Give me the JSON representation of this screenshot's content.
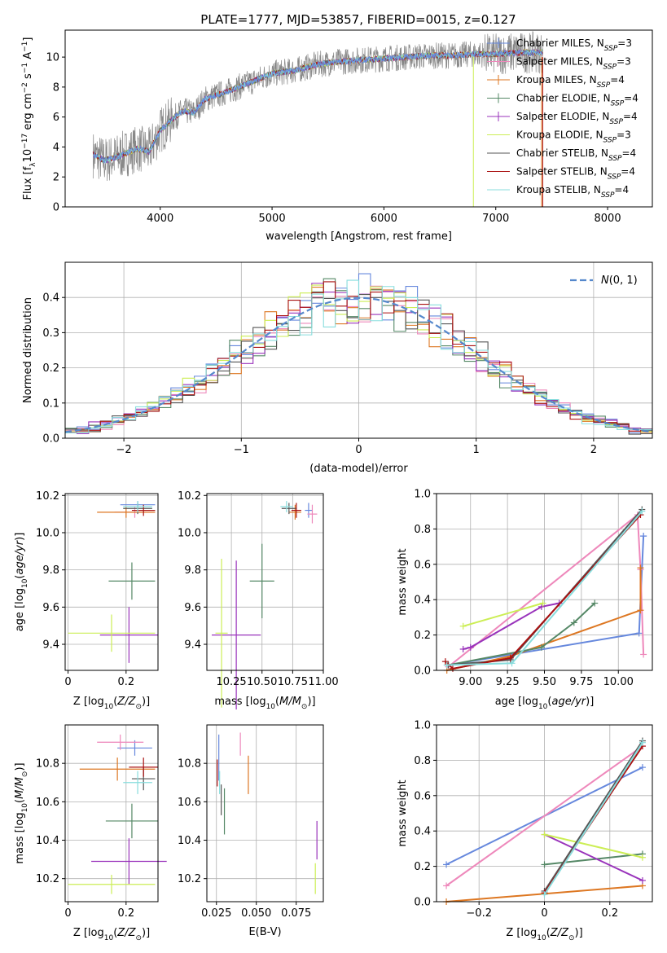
{
  "figure": {
    "title": "PLATE=1777, MJD=53857, FIBERID=0015, z=0.127"
  },
  "colors": {
    "Chabrier MILES": "#6688dd",
    "Salpeter MILES": "#ee88bb",
    "Kroupa MILES": "#dd7722",
    "Chabrier ELODIE": "#558866",
    "Salpeter ELODIE": "#9933bb",
    "Kroupa ELODIE": "#ccee55",
    "Chabrier STELIB": "#555555",
    "Salpeter STELIB": "#aa1111",
    "Kroupa STELIB": "#88dddd",
    "normal": "#5588cc"
  },
  "chart_data": [
    {
      "id": "spectrum",
      "type": "line",
      "xlabel": "wavelength [Angstrom, rest frame]",
      "ylabel": "Flux [f_λ 10^-17 erg cm^-2 s^-1 A^-1]",
      "xlim": [
        3150,
        8400
      ],
      "ylim": [
        0,
        11.8
      ],
      "xticks": [
        4000,
        5000,
        6000,
        7000,
        8000
      ],
      "yticks": [
        0,
        2,
        4,
        6,
        8,
        10
      ],
      "grid": false,
      "legend_position": "top-right",
      "legend": [
        "Chabrier MILES, N_SSP=3",
        "Salpeter MILES, N_SSP=3",
        "Kroupa MILES, N_SSP=4",
        "Chabrier ELODIE, N_SSP=4",
        "Salpeter ELODIE, N_SSP=4",
        "Kroupa ELODIE, N_SSP=3",
        "Chabrier STELIB, N_SSP=4",
        "Salpeter STELIB, N_SSP=4",
        "Kroupa STELIB, N_SSP=4"
      ],
      "model_x": [
        3400,
        3500,
        3600,
        3700,
        3800,
        3900,
        4000,
        4100,
        4200,
        4300,
        4400,
        4600,
        4800,
        5000,
        5200,
        5400,
        5600,
        5800,
        6000,
        6200,
        6400,
        6600,
        6800,
        7000,
        7200,
        7400
      ],
      "model_y": [
        3.5,
        3.1,
        3.3,
        3.6,
        3.9,
        3.7,
        5.1,
        5.8,
        6.4,
        6.3,
        7.2,
        7.7,
        8.3,
        8.9,
        9.1,
        9.5,
        9.7,
        9.8,
        9.9,
        10.0,
        10.1,
        10.1,
        10.2,
        10.2,
        10.3,
        10.3
      ]
    },
    {
      "id": "residuals",
      "type": "histogram",
      "xlabel": "(data-model)/error",
      "ylabel": "Normed distribution",
      "xlim": [
        -2.5,
        2.5
      ],
      "ylim": [
        0,
        0.5
      ],
      "xticks": [
        -2,
        -1,
        0,
        1,
        2
      ],
      "yticks": [
        0.0,
        0.1,
        0.2,
        0.3,
        0.4
      ],
      "grid": true,
      "legend_position": "top-right",
      "legend": [
        "N(0,1)"
      ],
      "bin_width": 0.1,
      "bin_start": -2.5
    },
    {
      "id": "z-age",
      "type": "errorbar",
      "xlabel": "Z [log10(Z/Z_sun)]",
      "ylabel": "age  [log10(age/yr)]",
      "xlim": [
        -0.01,
        0.31
      ],
      "ylim": [
        9.26,
        10.21
      ],
      "xticks": [
        0.0,
        0.2
      ],
      "yticks": [
        9.4,
        9.6,
        9.8,
        10.0,
        10.2
      ],
      "grid": true,
      "points": [
        {
          "model": "Chabrier MILES",
          "x": 0.24,
          "xerr": 0.06,
          "y": 10.15,
          "yerr": 0.02
        },
        {
          "model": "Salpeter MILES",
          "x": 0.23,
          "xerr": 0.07,
          "y": 10.11,
          "yerr": 0.03
        },
        {
          "model": "Kroupa MILES",
          "x": 0.2,
          "xerr": 0.1,
          "y": 10.11,
          "yerr": 0.03
        },
        {
          "model": "Chabrier ELODIE",
          "x": 0.22,
          "xerr": 0.08,
          "y": 9.74,
          "yerr": 0.1
        },
        {
          "model": "Salpeter ELODIE",
          "x": 0.21,
          "xerr": 0.1,
          "y": 9.45,
          "yerr": 0.15
        },
        {
          "model": "Kroupa ELODIE",
          "x": 0.15,
          "xerr": 0.15,
          "y": 9.46,
          "yerr": 0.1
        },
        {
          "model": "Chabrier STELIB",
          "x": 0.24,
          "xerr": 0.05,
          "y": 10.13,
          "yerr": 0.03
        },
        {
          "model": "Salpeter STELIB",
          "x": 0.26,
          "xerr": 0.04,
          "y": 10.12,
          "yerr": 0.03
        },
        {
          "model": "Kroupa STELIB",
          "x": 0.24,
          "xerr": 0.05,
          "y": 10.14,
          "yerr": 0.03
        }
      ]
    },
    {
      "id": "mass-age",
      "type": "errorbar",
      "xlabel": "mass [log10(M/M_sun)]",
      "xlim": [
        10.05,
        11.0
      ],
      "ylim": [
        9.26,
        10.21
      ],
      "xticks": [
        10.25,
        10.5,
        10.75,
        11.0
      ],
      "xticklabels": [
        "10.25",
        "10.50",
        "10.75",
        "11.00"
      ],
      "yticks": [
        9.4,
        9.6,
        9.8,
        10.0,
        10.2
      ],
      "grid": true,
      "points": [
        {
          "model": "Chabrier MILES",
          "x": 10.88,
          "xerr": 0.03,
          "y": 10.12,
          "yerr": 0.04
        },
        {
          "model": "Salpeter MILES",
          "x": 10.91,
          "xerr": 0.04,
          "y": 10.1,
          "yerr": 0.05
        },
        {
          "model": "Kroupa MILES",
          "x": 10.77,
          "xerr": 0.05,
          "y": 10.11,
          "yerr": 0.04
        },
        {
          "model": "Chabrier ELODIE",
          "x": 10.5,
          "xerr": 0.1,
          "y": 9.74,
          "yerr": 0.2
        },
        {
          "model": "Salpeter ELODIE",
          "x": 10.29,
          "xerr": 0.2,
          "y": 9.45,
          "yerr": 0.4
        },
        {
          "model": "Kroupa ELODIE",
          "x": 10.17,
          "xerr": 0.05,
          "y": 9.46,
          "yerr": 0.4
        },
        {
          "model": "Chabrier STELIB",
          "x": 10.72,
          "xerr": 0.06,
          "y": 10.13,
          "yerr": 0.03
        },
        {
          "model": "Salpeter STELIB",
          "x": 10.78,
          "xerr": 0.04,
          "y": 10.12,
          "yerr": 0.04
        },
        {
          "model": "Kroupa STELIB",
          "x": 10.7,
          "xerr": 0.05,
          "y": 10.14,
          "yerr": 0.03
        }
      ]
    },
    {
      "id": "age-weight",
      "type": "line",
      "xlabel": "age  [log10(age/yr)]",
      "ylabel": "mass weight",
      "xlim": [
        8.77,
        10.23
      ],
      "ylim": [
        0,
        1.0
      ],
      "xticks": [
        9.0,
        9.25,
        9.5,
        9.75,
        10.0
      ],
      "xticklabels": [
        "9.00",
        "9.25",
        "9.50",
        "9.75",
        "10.00"
      ],
      "yticks": [
        0.0,
        0.2,
        0.4,
        0.6,
        0.8,
        1.0
      ],
      "grid": true,
      "series": [
        {
          "model": "Chabrier MILES",
          "x": [
            8.85,
            10.14,
            10.17,
            10.17
          ],
          "y": [
            0.03,
            0.21,
            0.76,
            0.76
          ]
        },
        {
          "model": "Salpeter MILES",
          "x": [
            8.85,
            10.13,
            10.15,
            10.17
          ],
          "y": [
            0.02,
            0.88,
            0.57,
            0.09
          ]
        },
        {
          "model": "Kroupa MILES",
          "x": [
            8.84,
            9.27,
            10.15,
            10.15
          ],
          "y": [
            0.0,
            0.08,
            0.34,
            0.58
          ]
        },
        {
          "model": "Chabrier ELODIE",
          "x": [
            8.85,
            9.48,
            9.7,
            9.84
          ],
          "y": [
            0.03,
            0.13,
            0.27,
            0.38
          ]
        },
        {
          "model": "Salpeter ELODIE",
          "x": [
            8.95,
            9.0,
            9.48,
            9.6
          ],
          "y": [
            0.12,
            0.13,
            0.36,
            0.38
          ]
        },
        {
          "model": "Kroupa ELODIE",
          "x": [
            8.95,
            9.49
          ],
          "y": [
            0.25,
            0.38
          ]
        },
        {
          "model": "Chabrier STELIB",
          "x": [
            8.85,
            9.27,
            10.16
          ],
          "y": [
            0.03,
            0.06,
            0.91
          ]
        },
        {
          "model": "Salpeter STELIB",
          "x": [
            8.83,
            8.88,
            9.27,
            10.15
          ],
          "y": [
            0.05,
            0.01,
            0.07,
            0.88
          ]
        },
        {
          "model": "Kroupa STELIB",
          "x": [
            8.84,
            9.28,
            10.16
          ],
          "y": [
            0.03,
            0.04,
            0.9
          ]
        }
      ]
    },
    {
      "id": "z-mass",
      "type": "errorbar",
      "xlabel": "Z [log10(Z/Z_sun)]",
      "ylabel": "mass [log10(M/M_sun)]",
      "xlim": [
        -0.01,
        0.31
      ],
      "ylim": [
        10.08,
        11.0
      ],
      "xticks": [
        0.0,
        0.2
      ],
      "yticks": [
        10.2,
        10.4,
        10.6,
        10.8
      ],
      "grid": true,
      "points": [
        {
          "model": "Chabrier MILES",
          "x": 0.23,
          "xerr": 0.06,
          "y": 10.88,
          "yerr": 0.04
        },
        {
          "model": "Salpeter MILES",
          "x": 0.18,
          "xerr": 0.08,
          "y": 10.91,
          "yerr": 0.04
        },
        {
          "model": "Kroupa MILES",
          "x": 0.17,
          "xerr": 0.13,
          "y": 10.77,
          "yerr": 0.06
        },
        {
          "model": "Chabrier ELODIE",
          "x": 0.22,
          "xerr": 0.09,
          "y": 10.5,
          "yerr": 0.09
        },
        {
          "model": "Salpeter ELODIE",
          "x": 0.21,
          "xerr": 0.13,
          "y": 10.29,
          "yerr": 0.12
        },
        {
          "model": "Kroupa ELODIE",
          "x": 0.15,
          "xerr": 0.15,
          "y": 10.17,
          "yerr": 0.05
        },
        {
          "model": "Chabrier STELIB",
          "x": 0.26,
          "xerr": 0.04,
          "y": 10.72,
          "yerr": 0.06
        },
        {
          "model": "Salpeter STELIB",
          "x": 0.26,
          "xerr": 0.05,
          "y": 10.78,
          "yerr": 0.05
        },
        {
          "model": "Kroupa STELIB",
          "x": 0.24,
          "xerr": 0.05,
          "y": 10.7,
          "yerr": 0.06
        }
      ]
    },
    {
      "id": "ebv-mass",
      "type": "errorbar",
      "xlabel": "E(B-V)",
      "xlim": [
        0.019,
        0.092
      ],
      "ylim": [
        10.08,
        11.0
      ],
      "xticks": [
        0.025,
        0.05,
        0.075
      ],
      "xticklabels": [
        "0.025",
        "0.050",
        "0.075"
      ],
      "yticks": [
        10.2,
        10.4,
        10.6,
        10.8
      ],
      "grid": true,
      "points": [
        {
          "model": "Chabrier MILES",
          "x": 0.0265,
          "xerr": 0,
          "y": 10.83,
          "yerr": 0.12
        },
        {
          "model": "Salpeter MILES",
          "x": 0.04,
          "xerr": 0,
          "y": 10.9,
          "yerr": 0.06
        },
        {
          "model": "Kroupa MILES",
          "x": 0.045,
          "xerr": 0,
          "y": 10.74,
          "yerr": 0.1
        },
        {
          "model": "Chabrier ELODIE",
          "x": 0.03,
          "xerr": 0,
          "y": 10.55,
          "yerr": 0.12
        },
        {
          "model": "Salpeter ELODIE",
          "x": 0.088,
          "xerr": 0,
          "y": 10.4,
          "yerr": 0.1
        },
        {
          "model": "Kroupa ELODIE",
          "x": 0.087,
          "xerr": 0,
          "y": 10.2,
          "yerr": 0.08
        },
        {
          "model": "Chabrier STELIB",
          "x": 0.028,
          "xerr": 0,
          "y": 10.61,
          "yerr": 0.08
        },
        {
          "model": "Salpeter STELIB",
          "x": 0.0255,
          "xerr": 0,
          "y": 10.75,
          "yerr": 0.07
        },
        {
          "model": "Kroupa STELIB",
          "x": 0.027,
          "xerr": 0,
          "y": 10.7,
          "yerr": 0.06
        }
      ]
    },
    {
      "id": "z-weight",
      "type": "line",
      "xlabel": "Z [log10(Z/Z_sun)]",
      "ylabel": "mass weight",
      "xlim": [
        -0.33,
        0.33
      ],
      "ylim": [
        0,
        1.0
      ],
      "xticks": [
        -0.2,
        0.0,
        0.2
      ],
      "yticks": [
        0.0,
        0.2,
        0.4,
        0.6,
        0.8,
        1.0
      ],
      "grid": true,
      "series": [
        {
          "model": "Chabrier MILES",
          "x": [
            -0.3,
            0.3
          ],
          "y": [
            0.21,
            0.76
          ]
        },
        {
          "model": "Salpeter MILES",
          "x": [
            -0.3,
            0.3
          ],
          "y": [
            0.09,
            0.88
          ]
        },
        {
          "model": "Kroupa MILES",
          "x": [
            -0.3,
            0.3
          ],
          "y": [
            0.0,
            0.09
          ]
        },
        {
          "model": "Chabrier ELODIE",
          "x": [
            0.0,
            0.3
          ],
          "y": [
            0.21,
            0.27
          ]
        },
        {
          "model": "Salpeter ELODIE",
          "x": [
            0.0,
            0.3
          ],
          "y": [
            0.38,
            0.12
          ]
        },
        {
          "model": "Kroupa ELODIE",
          "x": [
            0.0,
            0.3
          ],
          "y": [
            0.38,
            0.25
          ]
        },
        {
          "model": "Chabrier STELIB",
          "x": [
            0.0,
            0.3
          ],
          "y": [
            0.06,
            0.91
          ]
        },
        {
          "model": "Salpeter STELIB",
          "x": [
            0.0,
            0.3
          ],
          "y": [
            0.05,
            0.88
          ]
        },
        {
          "model": "Kroupa STELIB",
          "x": [
            0.0,
            0.3
          ],
          "y": [
            0.04,
            0.9
          ]
        }
      ]
    }
  ]
}
